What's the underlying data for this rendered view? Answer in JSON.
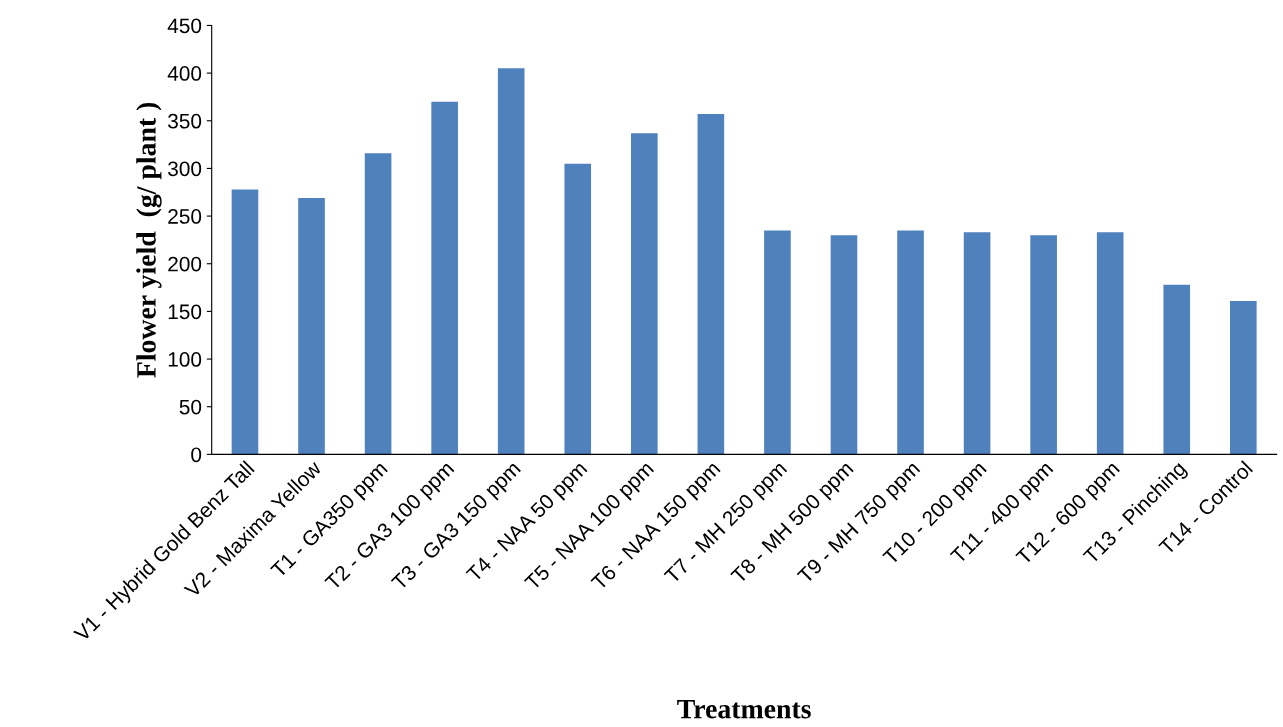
{
  "chart_data": {
    "type": "bar",
    "xlabel": "Treatments",
    "ylabel": "Flower yield  (g/ plant )",
    "categories": [
      "V1 - Hybrid Gold Benz Tall",
      "V2 - Maxima Yellow",
      "T1 - GA350 ppm",
      "T2 - GA3 100 ppm",
      "T3 - GA3 150 ppm",
      "T4 - NAA 50 ppm",
      "T5 - NAA 100 ppm",
      "T6 - NAA 150 ppm",
      "T7 - MH 250 ppm",
      "T8 - MH 500 ppm",
      "T9 - MH 750 ppm",
      "T10 - 200 ppm",
      "T11 - 400 ppm",
      "T12 - 600 ppm",
      "T13 - Pinching",
      "T14 - Control"
    ],
    "values": [
      278,
      269,
      316,
      370,
      405,
      305,
      337,
      357,
      235,
      230,
      235,
      233,
      230,
      233,
      178,
      161
    ],
    "color": "#4f81bd",
    "ylim": [
      0,
      450
    ],
    "yticks": [
      0,
      50,
      100,
      150,
      200,
      250,
      300,
      350,
      400,
      450
    ],
    "grid": false,
    "legend": false
  }
}
